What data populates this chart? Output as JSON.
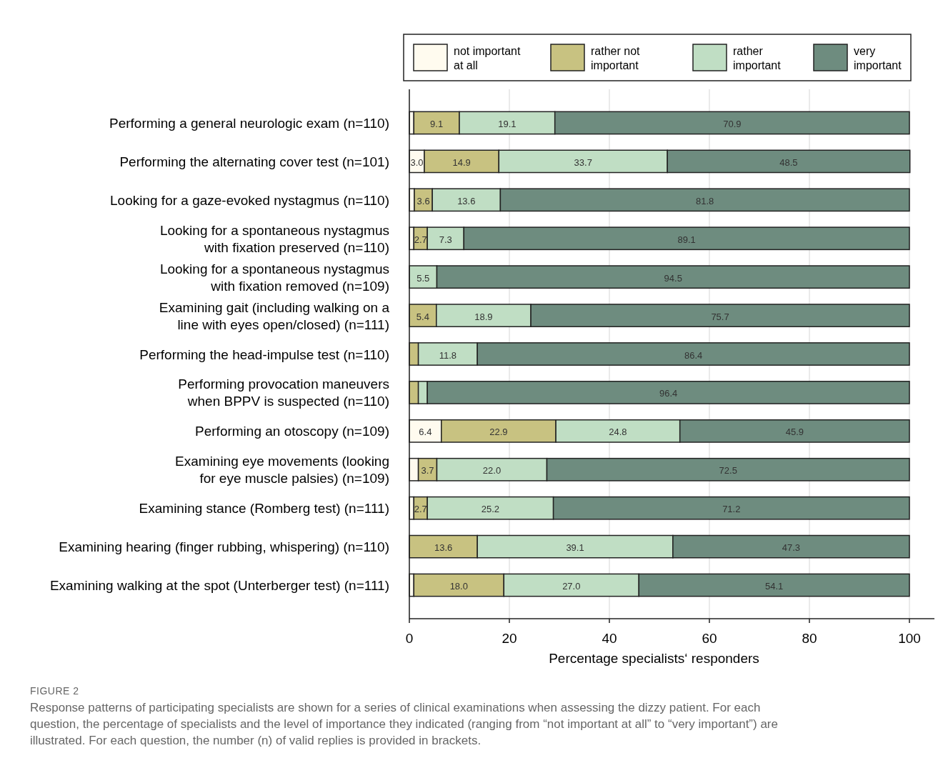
{
  "chart_data": {
    "type": "bar",
    "orientation": "horizontal",
    "stacked": true,
    "categories": [
      "Performing a general neurologic exam (n=110)",
      "Performing the alternating cover test (n=101)",
      "Looking for a gaze-evoked nystagmus (n=110)",
      "Looking for a spontaneous nystagmus\nwith fixation preserved (n=110)",
      "Looking for a spontaneous nystagmus\nwith fixation removed (n=109)",
      "Examining gait (including walking on a\nline with eyes open/closed) (n=111)",
      "Performing the head-impulse test (n=110)",
      "Performing provocation maneuvers\nwhen BPPV is suspected (n=110)",
      "Performing an otoscopy (n=109)",
      "Examining eye movements (looking\nfor eye muscle palsies) (n=109)",
      "Examining stance (Romberg test) (n=111)",
      "Examining hearing (finger rubbing, whispering) (n=110)",
      "Examining walking at the spot (Unterberger test) (n=111)"
    ],
    "series": [
      {
        "name": "not important\nat all",
        "color": "#fffbef",
        "values": [
          0.9,
          3.0,
          1.0,
          0.9,
          0,
          0,
          0,
          0,
          6.4,
          1.8,
          0.9,
          0,
          0.9
        ],
        "value_labels": [
          null,
          "3.0",
          null,
          null,
          null,
          null,
          null,
          null,
          "6.4",
          null,
          null,
          null,
          null
        ]
      },
      {
        "name": "rather not\nimportant",
        "color": "#c8c281",
        "values": [
          9.1,
          14.9,
          3.6,
          2.7,
          0,
          5.4,
          1.8,
          1.8,
          22.9,
          3.7,
          2.7,
          13.6,
          18.0
        ],
        "value_labels": [
          "9.1",
          "14.9",
          "3.6",
          "2.7",
          null,
          "5.4",
          null,
          null,
          "22.9",
          "3.7",
          "2.7",
          "13.6",
          "18.0"
        ]
      },
      {
        "name": "rather\nimportant",
        "color": "#c0dec4",
        "values": [
          19.1,
          33.7,
          13.6,
          7.3,
          5.5,
          18.9,
          11.8,
          1.8,
          24.8,
          22.0,
          25.2,
          39.1,
          27.0
        ],
        "value_labels": [
          "19.1",
          "33.7",
          "13.6",
          "7.3",
          "5.5",
          "18.9",
          "11.8",
          null,
          "24.8",
          "22.0",
          "25.2",
          "39.1",
          "27.0"
        ]
      },
      {
        "name": "very\nimportant",
        "color": "#6e8c7f",
        "values": [
          70.9,
          48.5,
          81.8,
          89.1,
          94.5,
          75.7,
          86.4,
          96.4,
          45.9,
          72.5,
          71.2,
          47.3,
          54.1
        ],
        "value_labels": [
          "70.9",
          "48.5",
          "81.8",
          "89.1",
          "94.5",
          "75.7",
          "86.4",
          "96.4",
          "45.9",
          "72.5",
          "71.2",
          "47.3",
          "54.1"
        ]
      }
    ],
    "xlim": [
      0,
      105
    ],
    "xticks": [
      0,
      20,
      40,
      60,
      80,
      100
    ],
    "xlabel": "Percentage specialists‘ responders",
    "grid": "x",
    "legend": "top",
    "annotations": [
      "FIGURE 2",
      "Response patterns of participating specialists are shown for a series of clinical examinations when assessing the dizzy patient. For each question, the percentage of specialists and the level of importance they indicated (ranging from “not important at all” to “very important”) are illustrated. For each question, the number (n) of valid replies is provided in brackets."
    ]
  }
}
